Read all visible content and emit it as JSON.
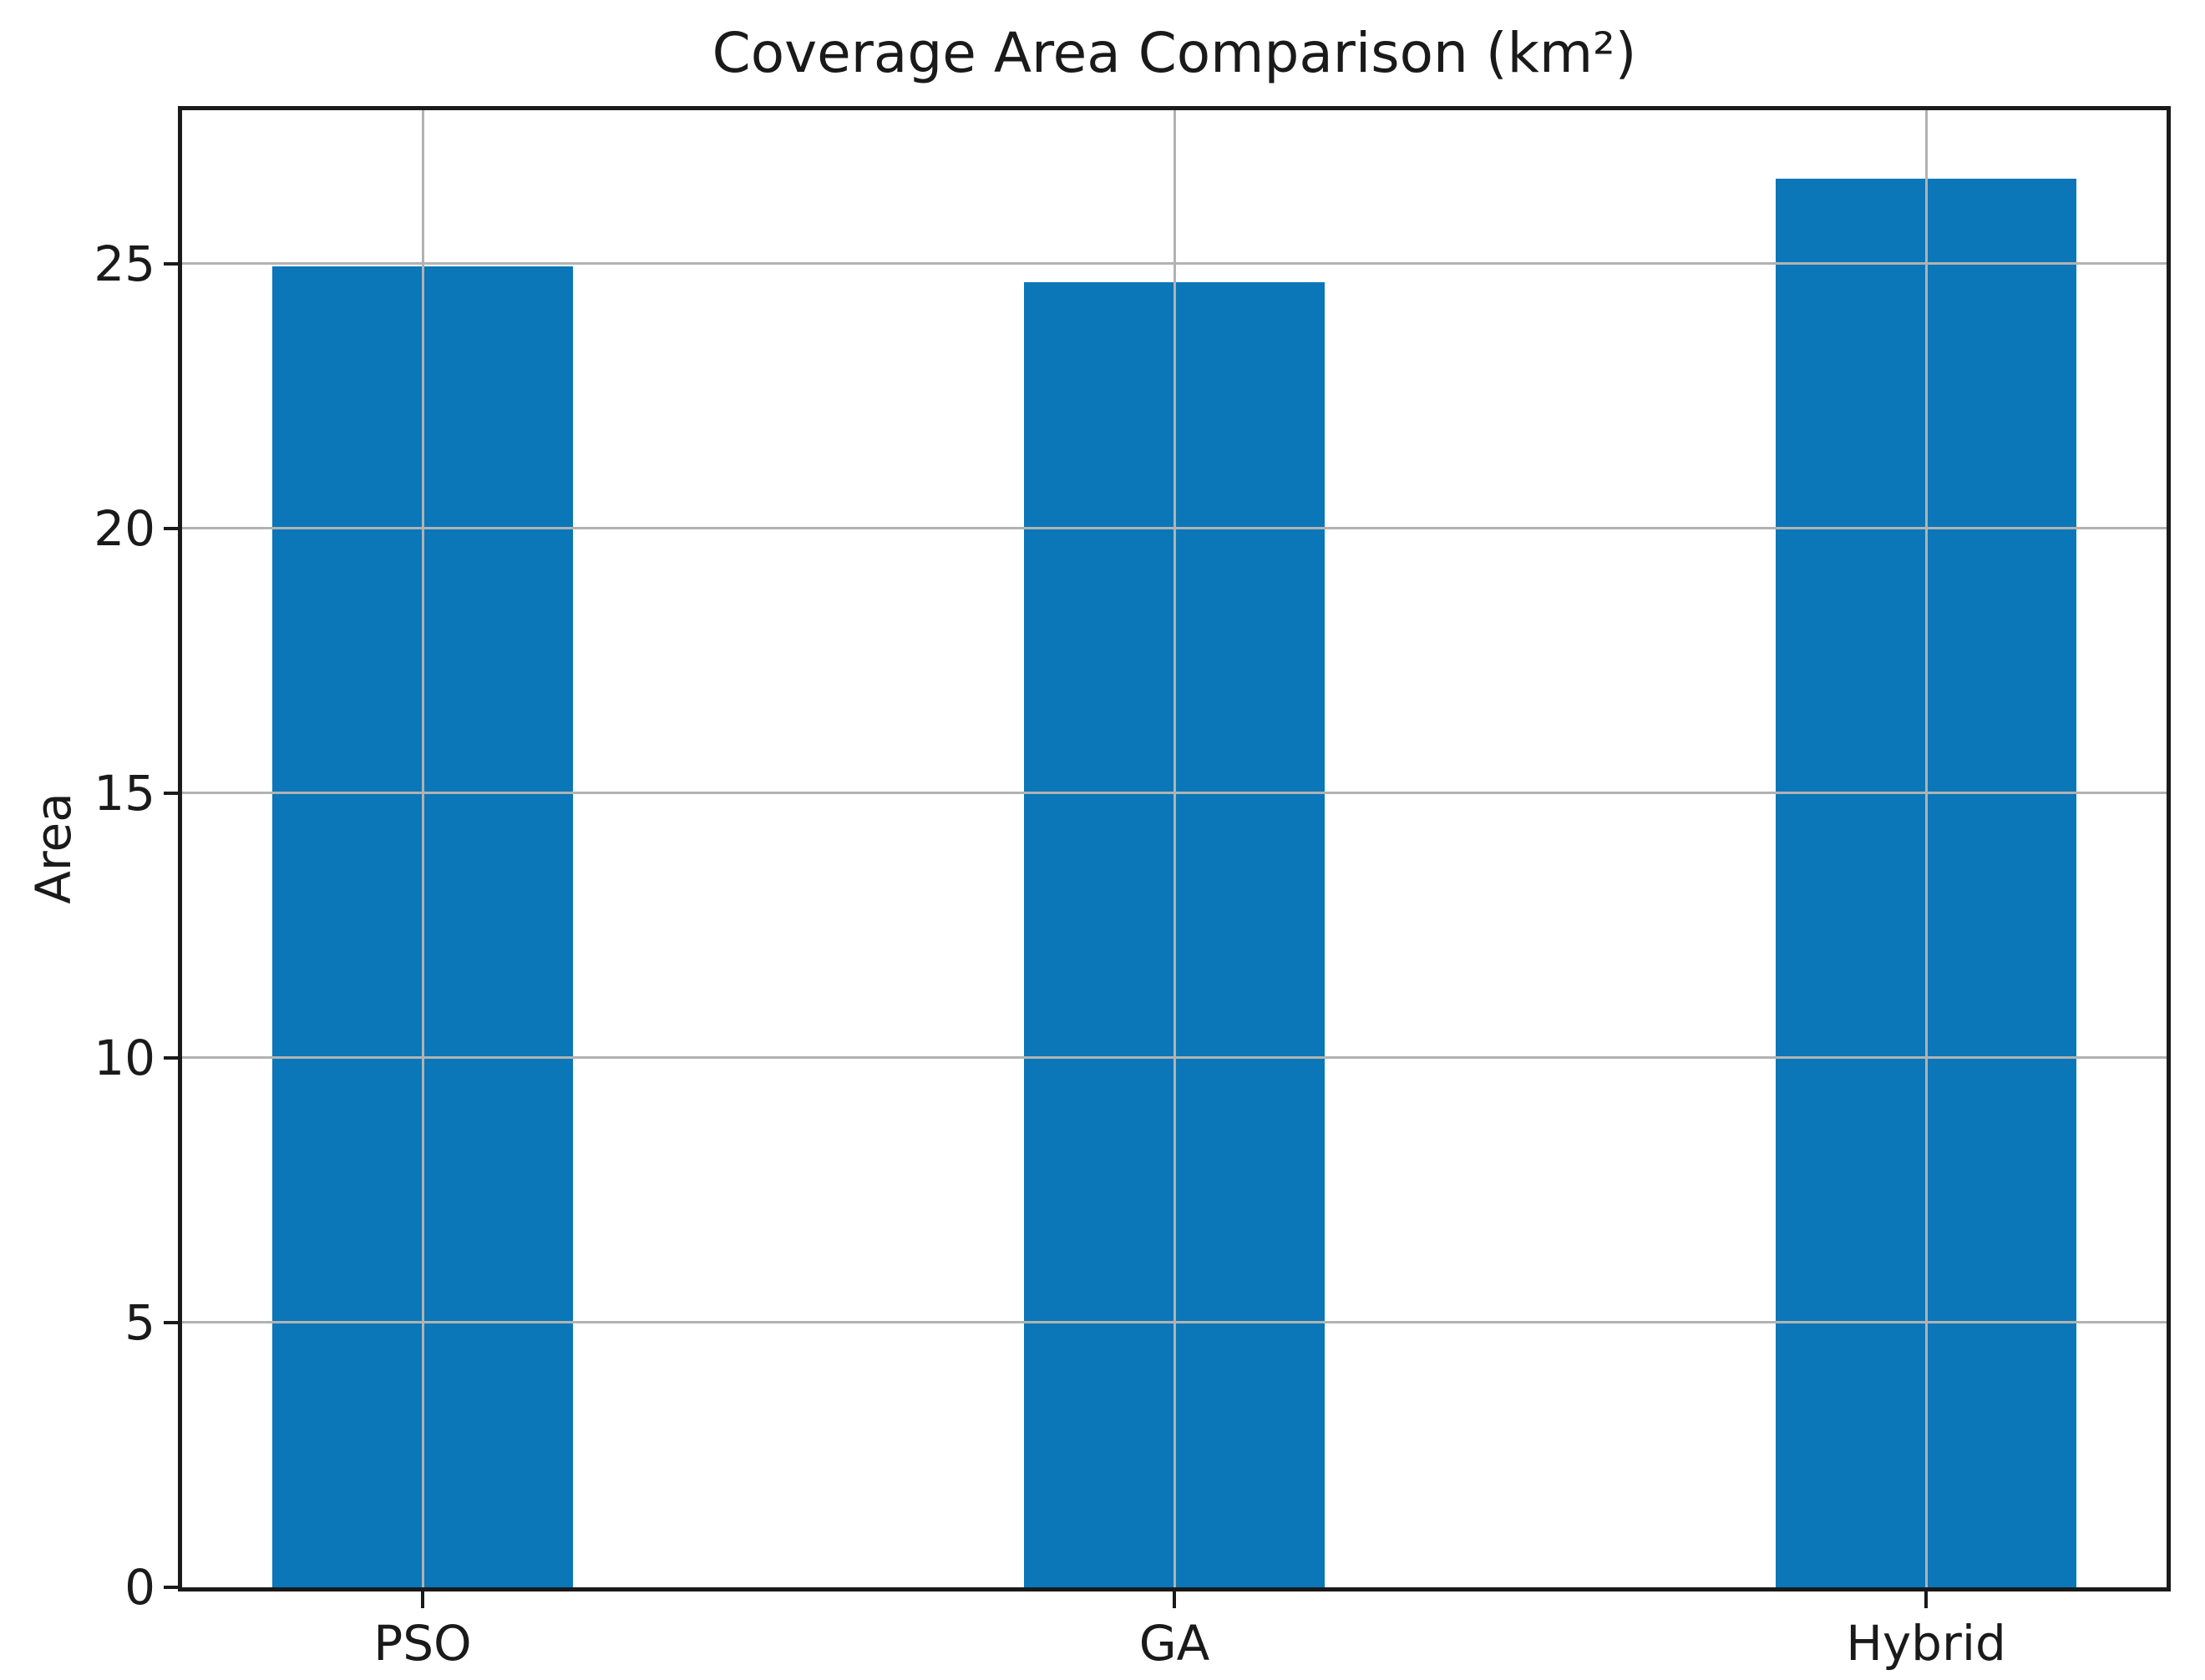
{
  "chart_data": {
    "type": "bar",
    "title": "Coverage Area Comparison (km²)",
    "xlabel": "",
    "ylabel": "Area",
    "categories": [
      "PSO",
      "GA",
      "Hybrid"
    ],
    "values": [
      24.95,
      24.65,
      26.6
    ],
    "yticks": [
      0,
      5,
      10,
      15,
      20,
      25
    ],
    "ylim": [
      0,
      27.9
    ],
    "xlim": [
      -0.32,
      2.32
    ],
    "bar_width": 0.4,
    "grid": "on",
    "legend": "none",
    "bar_color": "#0b77b8",
    "grid_color": "#b2b2b2",
    "axis_color": "#1a1a1a"
  }
}
